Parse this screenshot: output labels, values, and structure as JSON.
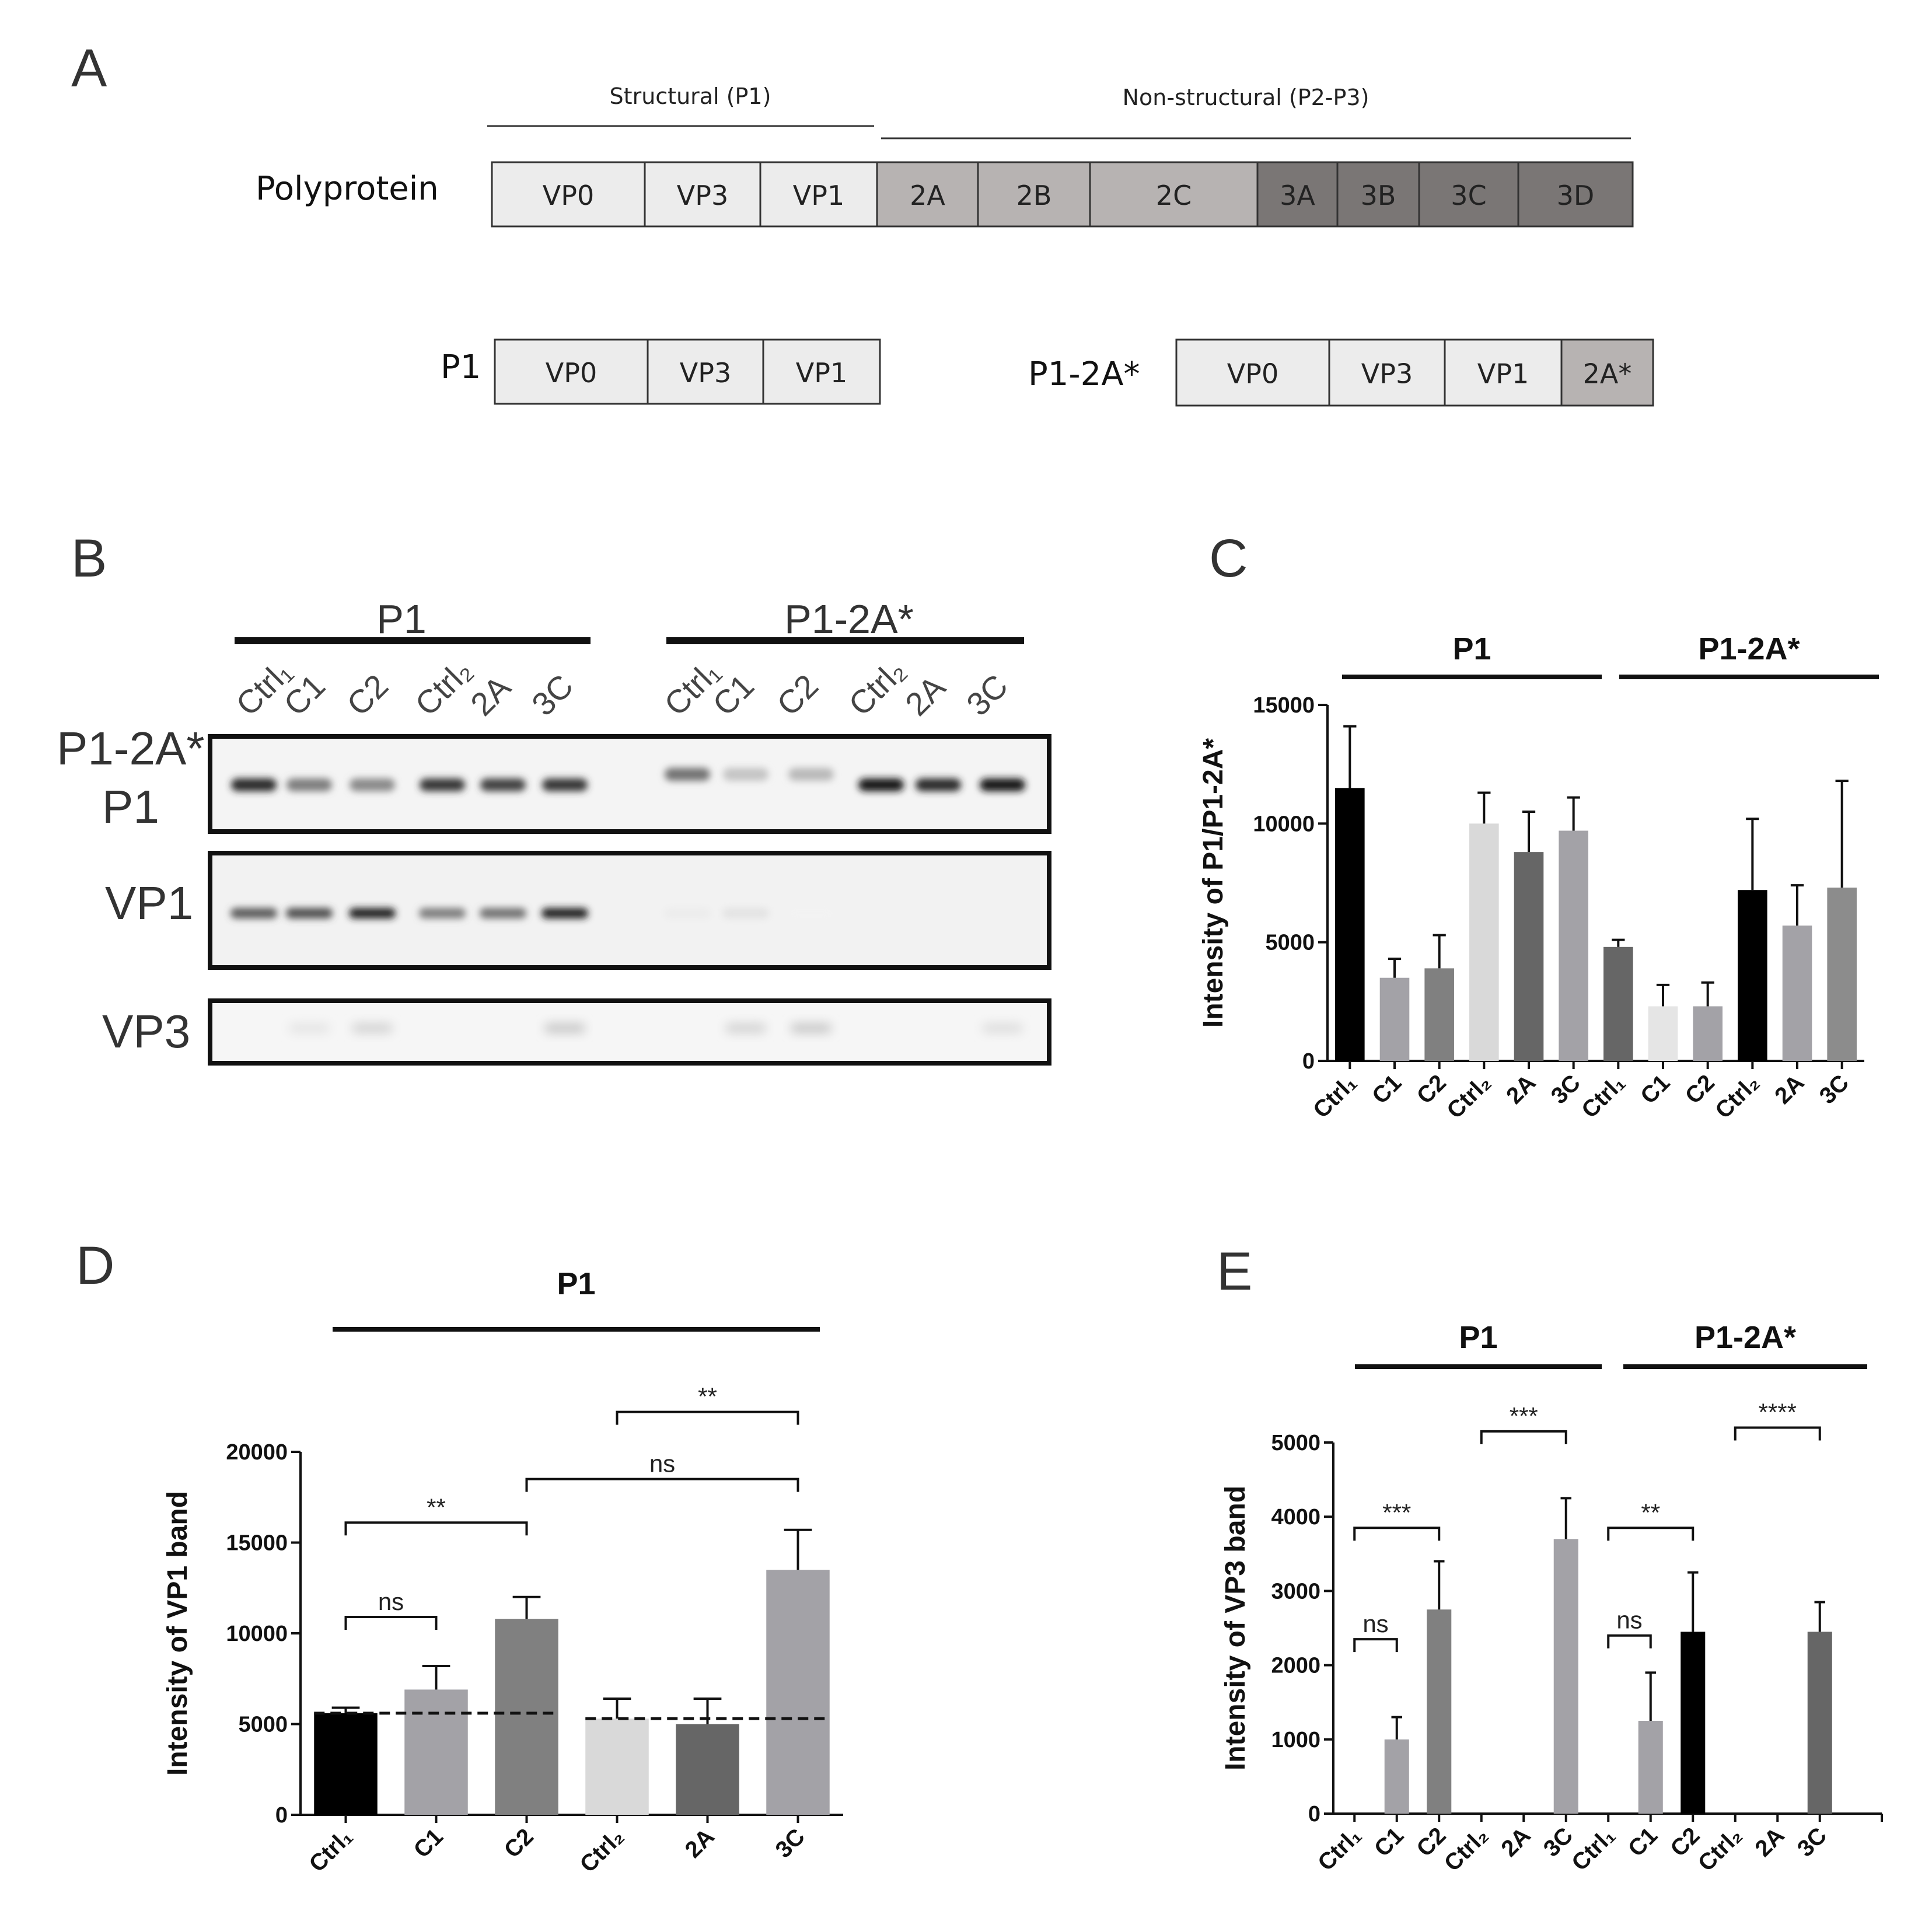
{
  "panel_labels": [
    "A",
    "B",
    "C",
    "D",
    "E"
  ],
  "panel_a": {
    "structural_label": "Structural (P1)",
    "nonstructural_label": "Non-structural (P2-P3)",
    "polyprotein": {
      "label": "Polyprotein",
      "segments": [
        {
          "name": "VP0",
          "color": "#ececec"
        },
        {
          "name": "VP3",
          "color": "#ececec"
        },
        {
          "name": "VP1",
          "color": "#ececec"
        },
        {
          "name": "2A",
          "color": "#b7b3b2"
        },
        {
          "name": "2B",
          "color": "#b7b3b2"
        },
        {
          "name": "2C",
          "color": "#b7b3b2"
        },
        {
          "name": "3A",
          "color": "#7a7675"
        },
        {
          "name": "3B",
          "color": "#7a7675"
        },
        {
          "name": "3C",
          "color": "#7a7675"
        },
        {
          "name": "3D",
          "color": "#7a7675"
        }
      ]
    },
    "p1": {
      "label": "P1",
      "segments": [
        {
          "name": "VP0",
          "color": "#ececec"
        },
        {
          "name": "VP3",
          "color": "#ececec"
        },
        {
          "name": "VP1",
          "color": "#ececec"
        }
      ]
    },
    "p1_2a": {
      "label": "P1-2A*",
      "segments": [
        {
          "name": "VP0",
          "color": "#ececec"
        },
        {
          "name": "VP3",
          "color": "#ececec"
        },
        {
          "name": "VP1",
          "color": "#ececec"
        },
        {
          "name": "2A*",
          "color": "#b7b3b2"
        }
      ]
    }
  },
  "panel_b": {
    "group_labels": [
      "P1",
      "P1-2A*"
    ],
    "lanes": [
      "Ctrl₁",
      "C1",
      "C2",
      "Ctrl₂",
      "2A",
      "3C",
      "Ctrl₁",
      "C1",
      "C2",
      "Ctrl₂",
      "2A",
      "3C"
    ],
    "row_labels": [
      "P1-2A*",
      "P1",
      "VP1",
      "VP3"
    ],
    "band_intensity": {
      "p1_row": [
        0.9,
        0.55,
        0.5,
        0.85,
        0.8,
        0.85,
        0.6,
        0.25,
        0.3,
        1.0,
        0.9,
        1.0
      ],
      "vp1_row": [
        0.7,
        0.75,
        0.95,
        0.55,
        0.6,
        0.95,
        0.08,
        0.12,
        0.05,
        0.0,
        0.0,
        0.0
      ],
      "vp3_row": [
        0.0,
        0.12,
        0.2,
        0.0,
        0.0,
        0.25,
        0.0,
        0.2,
        0.25,
        0.0,
        0.0,
        0.15
      ]
    }
  },
  "chart_data": [
    {
      "id": "C",
      "type": "bar",
      "ylabel": "Intensity of P1/P1-2A*",
      "ylim": [
        0,
        15000
      ],
      "yticks": [
        0,
        5000,
        10000,
        15000
      ],
      "group_labels": [
        "P1",
        "P1-2A*"
      ],
      "categories": [
        "Ctrl₁",
        "C1",
        "C2",
        "Ctrl₂",
        "2A",
        "3C",
        "Ctrl₁",
        "C1",
        "C2",
        "Ctrl₂",
        "2A",
        "3C"
      ],
      "values": [
        11500,
        3500,
        3900,
        10000,
        8800,
        9700,
        4800,
        2300,
        2300,
        7200,
        5700,
        7300
      ],
      "errors": [
        2600,
        800,
        1400,
        1300,
        1700,
        1400,
        300,
        900,
        1000,
        3000,
        1700,
        4500
      ],
      "colors": [
        "#000000",
        "#a3a2a7",
        "#808080",
        "#d9d9d9",
        "#666666",
        "#a3a2a7",
        "#666666",
        "#e5e5e5",
        "#a3a2a7",
        "#000000",
        "#a3a2a7",
        "#8c8c8c"
      ]
    },
    {
      "id": "D",
      "type": "bar",
      "ylabel": "Intensity of VP1 band",
      "ylim": [
        0,
        20000
      ],
      "yticks": [
        0,
        5000,
        10000,
        15000,
        20000
      ],
      "group_labels": [
        "P1"
      ],
      "categories": [
        "Ctrl₁",
        "C1",
        "C2",
        "Ctrl₂",
        "2A",
        "3C"
      ],
      "values": [
        5600,
        6900,
        10800,
        5300,
        5000,
        13500
      ],
      "errors": [
        300,
        1300,
        1200,
        1100,
        1400,
        2200
      ],
      "colors": [
        "#000000",
        "#a3a2a7",
        "#808080",
        "#d9d9d9",
        "#666666",
        "#a3a2a7"
      ],
      "reference_lines": [
        {
          "y": 5600,
          "from": 0,
          "to": 2
        },
        {
          "y": 5300,
          "from": 3,
          "to": 5
        }
      ],
      "significance": [
        {
          "from": 0,
          "to": 1,
          "label": "ns",
          "y": 10900
        },
        {
          "from": 0,
          "to": 2,
          "label": "**",
          "y": 16100
        },
        {
          "from": 2,
          "to": 5,
          "label": "ns",
          "y": 18500
        },
        {
          "from": 3,
          "to": 5,
          "label": "**",
          "y": 22200
        }
      ]
    },
    {
      "id": "E",
      "type": "bar",
      "ylabel": "Intensity of VP3 band",
      "ylim": [
        0,
        5000
      ],
      "yticks": [
        0,
        1000,
        2000,
        3000,
        4000,
        5000
      ],
      "group_labels": [
        "P1",
        "P1-2A*"
      ],
      "categories": [
        "Ctrl₁",
        "C1",
        "C2",
        "Ctrl₂",
        "2A",
        "3C",
        "Ctrl₁",
        "C1",
        "C2",
        "Ctrl₂",
        "2A",
        "3C"
      ],
      "values": [
        0,
        1000,
        2750,
        0,
        0,
        3700,
        0,
        1250,
        2450,
        0,
        0,
        2450
      ],
      "errors": [
        0,
        300,
        650,
        0,
        0,
        550,
        0,
        650,
        800,
        0,
        0,
        400
      ],
      "colors": [
        "#000000",
        "#a3a2a7",
        "#808080",
        "#d9d9d9",
        "#666666",
        "#a3a2a7",
        "#666666",
        "#a3a2a7",
        "#000000",
        "#d9d9d9",
        "#a3a2a7",
        "#666666"
      ],
      "significance": [
        {
          "from": 0,
          "to": 1,
          "label": "ns",
          "y": 2350
        },
        {
          "from": 0,
          "to": 2,
          "label": "***",
          "y": 3850
        },
        {
          "from": 3,
          "to": 5,
          "label": "***",
          "y": 5150
        },
        {
          "from": 6,
          "to": 7,
          "label": "ns",
          "y": 2400
        },
        {
          "from": 6,
          "to": 8,
          "label": "**",
          "y": 3850
        },
        {
          "from": 9,
          "to": 11,
          "label": "****",
          "y": 5200
        }
      ]
    }
  ]
}
